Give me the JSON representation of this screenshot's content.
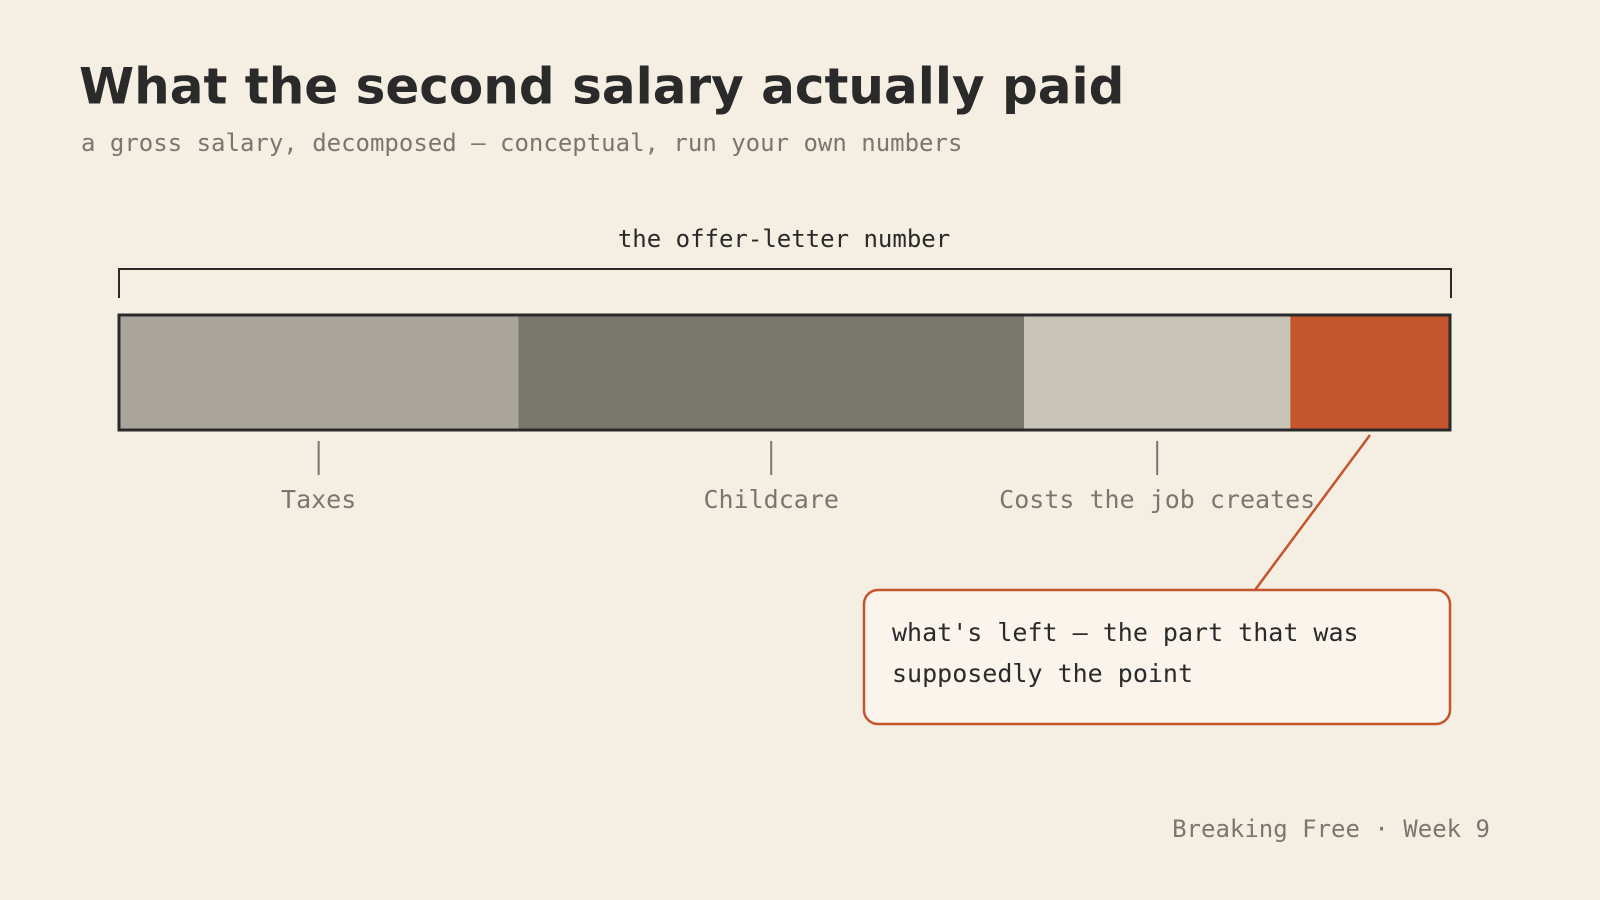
{
  "chart_data": {
    "type": "stacked-bar",
    "title": "What the second salary actually paid",
    "subtitle": "a gross salary, decomposed — conceptual, run your own numbers",
    "total_label": "the offer-letter number",
    "xlim": [
      0,
      100
    ],
    "series": [
      {
        "name": "Taxes",
        "color": "#a9a59a",
        "values": [
          30
        ]
      },
      {
        "name": "Childcare",
        "color": "#7a776e",
        "values": [
          38
        ]
      },
      {
        "name": "Costs the job creates",
        "color": "#c9c4b8",
        "values": [
          20
        ]
      },
      {
        "color": "#c4552d",
        "values": [
          12
        ]
      }
    ],
    "annotation": "what's left — the part that was supposedly the point"
  },
  "footer": "Breaking Free · Week 9"
}
